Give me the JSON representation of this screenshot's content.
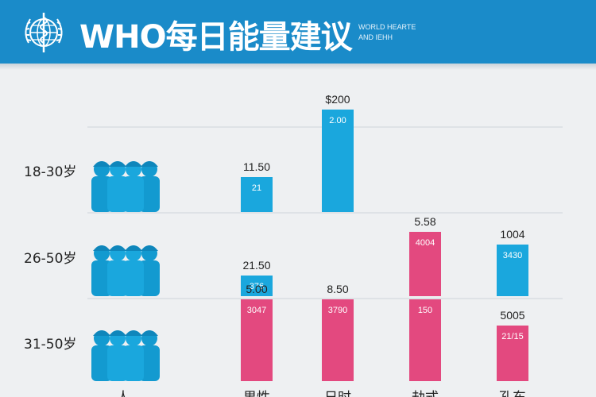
{
  "header": {
    "title": "WHO每日能量建议",
    "subtitle_line1": "WORLD HEARTE",
    "subtitle_line2": "AND IEHH",
    "logo_icon": "who-emblem-icon"
  },
  "colors": {
    "header_bg": "#1a8bc9",
    "blue": "#1aa7dd",
    "pink": "#e3497f",
    "grid": "#cfd5da",
    "text": "#222222"
  },
  "chart_data": {
    "type": "bar",
    "age_groups": [
      "18-30岁",
      "26-50岁",
      "31-50岁"
    ],
    "group_icon": "people-group-icon",
    "categories": [
      "人",
      "男性",
      "日时",
      "劫式",
      "孔东"
    ],
    "bars": [
      {
        "category": "男性",
        "row": 0,
        "color": "blue",
        "value_label": "11.50",
        "inner_label": "21",
        "fill": 0.42
      },
      {
        "category": "日时",
        "row": 0,
        "color": "blue",
        "value_label": "$200",
        "inner_label": "2.00",
        "fill": 1.0
      },
      {
        "category": "男性",
        "row": 1,
        "color": "blue",
        "value_label": "21.50",
        "inner_label": "376",
        "fill": 0.25
      },
      {
        "category": "劫式",
        "row": 1,
        "color": "pink",
        "value_label": "5.58",
        "inner_label": "4004",
        "fill": 0.77
      },
      {
        "category": "孔东",
        "row": 1,
        "color": "blue",
        "value_label": "1004",
        "inner_label": "3430",
        "fill": 0.62
      },
      {
        "category": "男性",
        "row": 2,
        "color": "pink",
        "value_label": "5.00",
        "inner_label": "3047",
        "fill": 1.0
      },
      {
        "category": "日时",
        "row": 2,
        "color": "pink",
        "value_label": "8.50",
        "inner_label": "3790",
        "fill": 1.0
      },
      {
        "category": "劫式",
        "row": 2,
        "color": "pink",
        "value_label": "",
        "inner_label": "150",
        "fill": 1.0
      },
      {
        "category": "孔东",
        "row": 2,
        "color": "pink",
        "value_label": "5005",
        "inner_label": "21/15",
        "fill": 0.68
      }
    ]
  }
}
